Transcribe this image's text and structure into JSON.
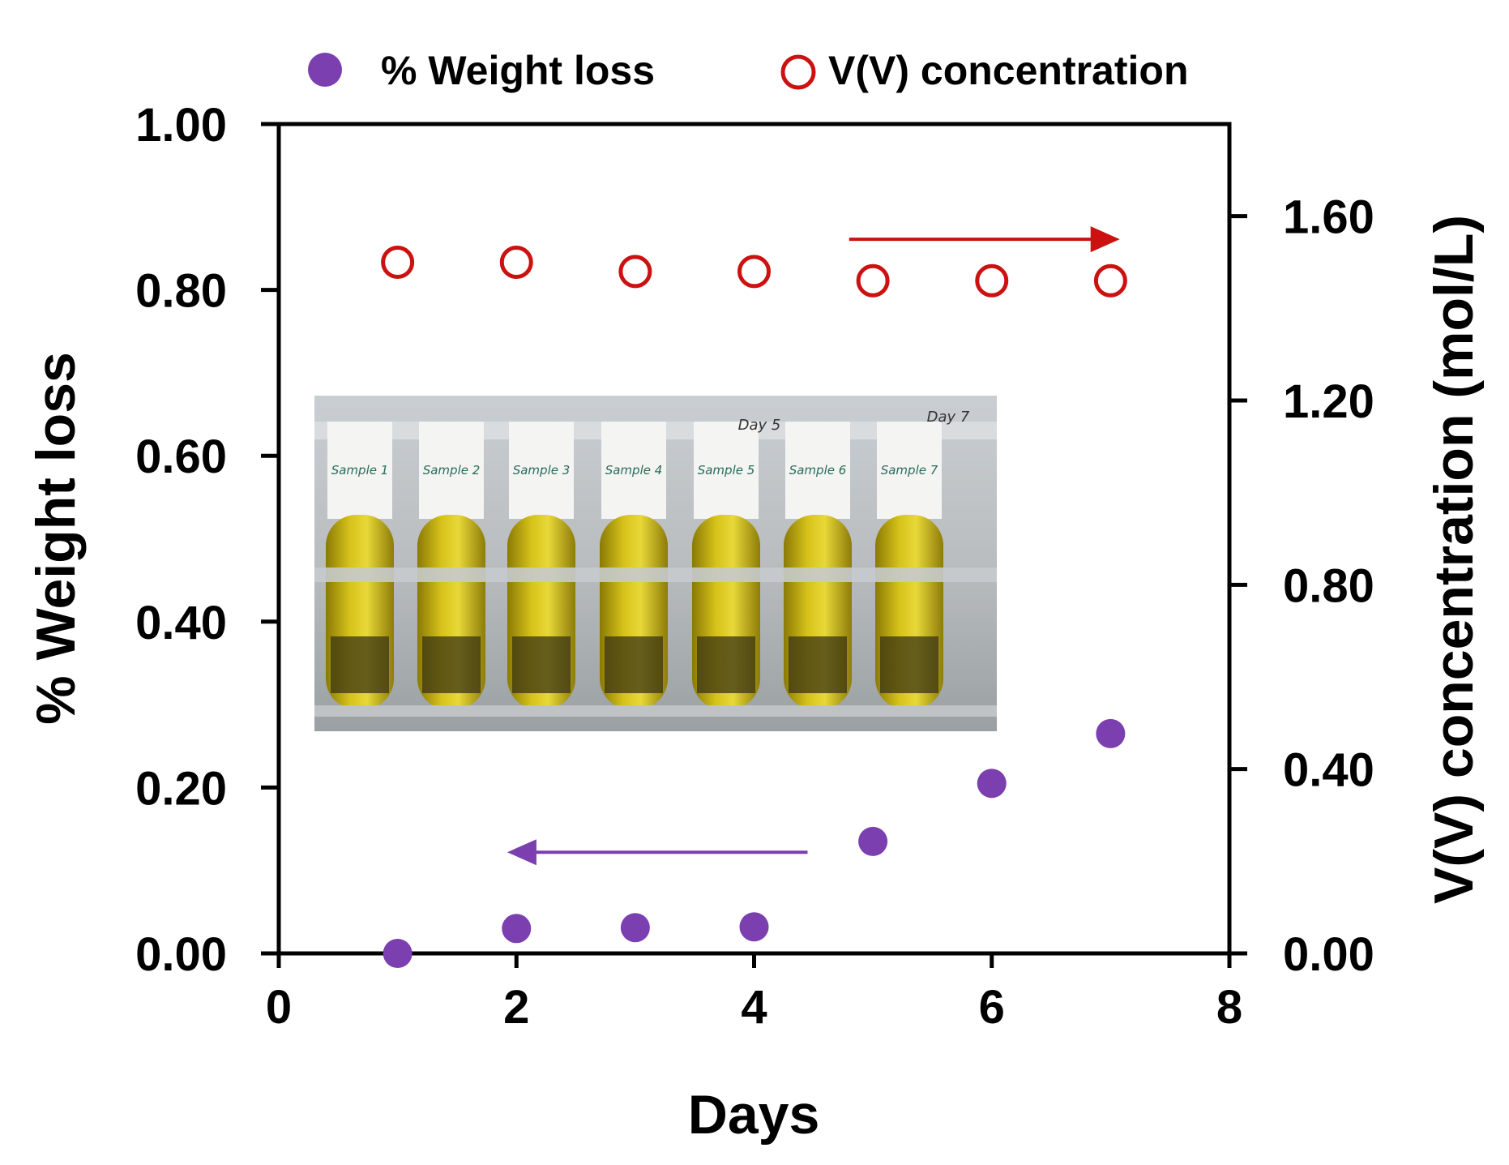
{
  "chart_data": {
    "type": "scatter",
    "xlabel": "Days",
    "ylabel": "% Weight loss",
    "y2label": "V(V) concentration (mol/L)",
    "xlim": [
      0,
      8
    ],
    "ylim": [
      0,
      1
    ],
    "y2lim": [
      0,
      1.8
    ],
    "xticks": [
      0,
      2,
      4,
      6,
      8
    ],
    "xtick_labels": [
      "0",
      "2",
      "4",
      "6",
      "8"
    ],
    "yticks": [
      0,
      0.2,
      0.4,
      0.6,
      0.8,
      1.0
    ],
    "ytick_labels": [
      "0.00",
      "0.20",
      "0.40",
      "0.60",
      "0.80",
      "1.00"
    ],
    "y2ticks": [
      0,
      0.4,
      0.8,
      1.2,
      1.6
    ],
    "y2tick_labels": [
      "0.00",
      "0.40",
      "0.80",
      "1.20",
      "1.60"
    ],
    "grid": false,
    "legend_position": "top",
    "series": [
      {
        "name": "% Weight loss",
        "axis": "left",
        "marker": "filled-circle",
        "color": "#7b3fb0",
        "x": [
          1,
          2,
          3,
          4,
          5,
          6,
          7
        ],
        "values": [
          0.0,
          0.03,
          0.031,
          0.032,
          0.135,
          0.205,
          0.265
        ]
      },
      {
        "name": "V(V) concentration",
        "axis": "right",
        "marker": "open-circle",
        "color": "#cc1111",
        "x": [
          1,
          2,
          3,
          4,
          5,
          6,
          7
        ],
        "values": [
          1.5,
          1.5,
          1.48,
          1.48,
          1.46,
          1.46,
          1.46
        ]
      }
    ],
    "annotations": [
      {
        "type": "arrow",
        "direction": "right",
        "series": "V(V) concentration",
        "from": [
          4.8,
          1.55
        ],
        "to": [
          7.05,
          1.55
        ],
        "axis": "right"
      },
      {
        "type": "arrow",
        "direction": "left",
        "series": "% Weight loss",
        "from": [
          4.45,
          0.122
        ],
        "to": [
          1.95,
          0.122
        ],
        "axis": "left"
      }
    ],
    "inset_image": {
      "description_name": "test-tube-photo",
      "tube_labels": [
        "Sample 1",
        "Sample 2",
        "Sample 3",
        "Sample 4",
        "Sample 5",
        "Sample 6",
        "Sample 7"
      ],
      "day_labels": [
        "Day 5",
        "Day 7"
      ]
    }
  }
}
